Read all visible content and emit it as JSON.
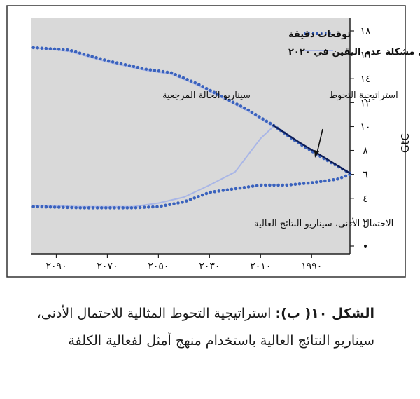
{
  "chart_data": {
    "type": "line",
    "ylabel": "GtC",
    "yticks": [
      "•",
      "٢",
      "٤",
      "٦",
      "٨",
      "١٠",
      "١٢",
      "١٤",
      "١٦",
      "١٨"
    ],
    "xticks": [
      "٢٠٩٠",
      "٢٠٧٠",
      "٢٠٥٠",
      "٢٠٣٠",
      "٢٠١٠",
      "١٩٩٠"
    ],
    "xlim": [
      1975,
      2100
    ],
    "ylim": [
      0,
      18
    ],
    "legend": [
      {
        "label": "توقعات دقيقة",
        "style": "dotted",
        "color": "#2f57b3"
      },
      {
        "label": "حل مشكلة عدم اليقين في ٢٠٢٠",
        "style": "solid",
        "color": "#a9b6e6"
      }
    ],
    "annotations": {
      "hedging": "استراتيجية التحوط",
      "reference": "سيناريو الحالة المرجعية",
      "low_high": "الاحتمال الأدنى، سيناريو النتائج العالية"
    },
    "series": [
      {
        "name": "reference_dotted",
        "style": "dotted",
        "color": "#3a62bd",
        "x": [
          2099,
          2085,
          2070,
          2055,
          2045,
          2035,
          2025,
          2015,
          2005,
          1995,
          1985,
          1975
        ],
        "y": [
          16.6,
          16.4,
          15.5,
          14.8,
          14.5,
          13.6,
          12.5,
          11.4,
          10.1,
          8.6,
          7.3,
          6.1
        ]
      },
      {
        "name": "reference_solid",
        "style": "solid",
        "color": "#a9b6e6",
        "x": [
          2099,
          2085,
          2070,
          2055,
          2045,
          2035,
          2025,
          2015,
          2005
        ],
        "y": [
          16.6,
          16.3,
          15.4,
          14.7,
          14.4,
          13.5,
          12.4,
          11.3,
          10.0
        ]
      },
      {
        "name": "hedging",
        "style": "solid",
        "color": "#0d1d57",
        "x": [
          2005,
          1995,
          1985,
          1975
        ],
        "y": [
          10.1,
          8.7,
          7.4,
          6.1
        ]
      },
      {
        "name": "low_dotted",
        "style": "dotted",
        "color": "#3a62bd",
        "x": [
          2099,
          2080,
          2060,
          2050,
          2040,
          2030,
          2020,
          2010,
          2000,
          1990,
          1980,
          1975
        ],
        "y": [
          3.3,
          3.2,
          3.2,
          3.3,
          3.7,
          4.5,
          4.8,
          5.1,
          5.1,
          5.3,
          5.6,
          6.0
        ]
      },
      {
        "name": "low_solid",
        "style": "solid",
        "color": "#a9b6e6",
        "x": [
          2099,
          2080,
          2060,
          2050,
          2040,
          2030,
          2020,
          2010,
          2005
        ],
        "y": [
          3.4,
          3.3,
          3.3,
          3.6,
          4.1,
          5.1,
          6.2,
          9.0,
          10.0
        ]
      }
    ]
  },
  "caption": {
    "label": "الشكل ١٠( ب):",
    "text": " استراتيجية التحوط المثالية للاحتمال الأدنى، سيناريو النتائج العالية باستخدام منهج أمثل لفعالية الكلفة"
  }
}
